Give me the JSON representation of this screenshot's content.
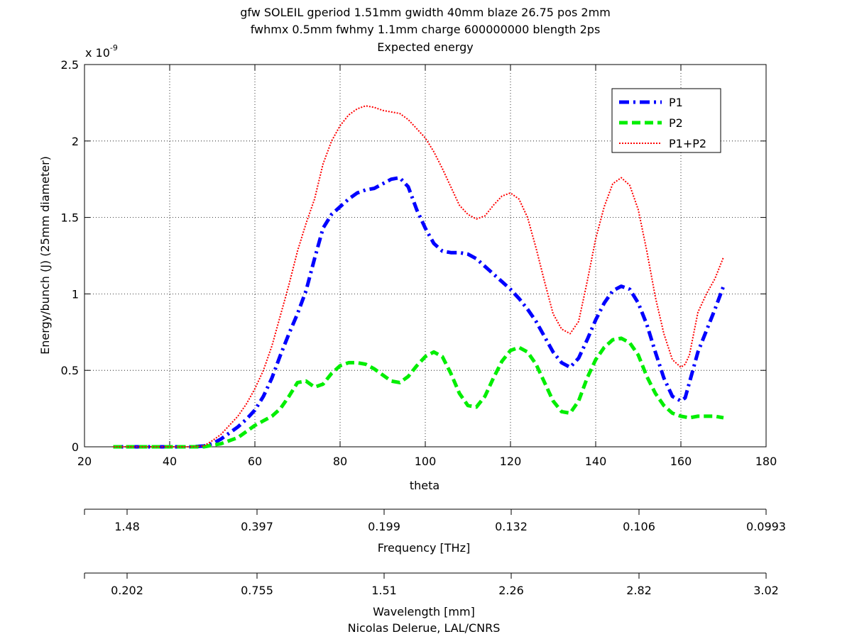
{
  "chart_data": {
    "type": "line",
    "title_lines": [
      "gfw SOLEIL gperiod 1.51mm gwidth 40mm blaze 26.75 pos 2mm",
      "fwhmx 0.5mm fwhmy 1.1mm charge 600000000 blength 2ps",
      "Expected energy"
    ],
    "xlabel": "theta",
    "ylabel": "Energy/bunch (J) (25mm diameter)",
    "y_exponent_label": "x 10",
    "y_exponent_power": "-9",
    "xlim": [
      20,
      180
    ],
    "ylim": [
      0,
      2.5
    ],
    "x_ticks": [
      20,
      40,
      60,
      80,
      100,
      120,
      140,
      160,
      180
    ],
    "y_ticks": [
      0,
      0.5,
      1,
      1.5,
      2,
      2.5
    ],
    "x_tick_labels": [
      "20",
      "40",
      "60",
      "80",
      "100",
      "120",
      "140",
      "160",
      "180"
    ],
    "y_tick_labels": [
      "0",
      "0.5",
      "1",
      "1.5",
      "2",
      "2.5"
    ],
    "grid": true,
    "legend_position": "top-right",
    "series": [
      {
        "name": "P1",
        "color": "#0000ff",
        "style": "dashdot",
        "points": [
          [
            26.75,
            0
          ],
          [
            30,
            0
          ],
          [
            35,
            0
          ],
          [
            40,
            0
          ],
          [
            45,
            0
          ],
          [
            48,
            0.005
          ],
          [
            50,
            0.02
          ],
          [
            52,
            0.05
          ],
          [
            54,
            0.09
          ],
          [
            56,
            0.13
          ],
          [
            58,
            0.18
          ],
          [
            60,
            0.24
          ],
          [
            62,
            0.33
          ],
          [
            64,
            0.45
          ],
          [
            66,
            0.6
          ],
          [
            68,
            0.74
          ],
          [
            70,
            0.87
          ],
          [
            72,
            1.02
          ],
          [
            74,
            1.23
          ],
          [
            76,
            1.43
          ],
          [
            78,
            1.52
          ],
          [
            80,
            1.57
          ],
          [
            82,
            1.62
          ],
          [
            84,
            1.66
          ],
          [
            86,
            1.68
          ],
          [
            88,
            1.69
          ],
          [
            90,
            1.72
          ],
          [
            92,
            1.75
          ],
          [
            94,
            1.76
          ],
          [
            96,
            1.7
          ],
          [
            98,
            1.55
          ],
          [
            100,
            1.43
          ],
          [
            102,
            1.33
          ],
          [
            104,
            1.28
          ],
          [
            106,
            1.27
          ],
          [
            108,
            1.27
          ],
          [
            110,
            1.26
          ],
          [
            112,
            1.23
          ],
          [
            114,
            1.18
          ],
          [
            116,
            1.13
          ],
          [
            118,
            1.08
          ],
          [
            120,
            1.03
          ],
          [
            122,
            0.97
          ],
          [
            124,
            0.9
          ],
          [
            126,
            0.82
          ],
          [
            128,
            0.72
          ],
          [
            130,
            0.62
          ],
          [
            132,
            0.55
          ],
          [
            134,
            0.52
          ],
          [
            136,
            0.58
          ],
          [
            138,
            0.7
          ],
          [
            140,
            0.83
          ],
          [
            142,
            0.94
          ],
          [
            144,
            1.02
          ],
          [
            146,
            1.05
          ],
          [
            148,
            1.03
          ],
          [
            150,
            0.94
          ],
          [
            152,
            0.8
          ],
          [
            154,
            0.62
          ],
          [
            156,
            0.45
          ],
          [
            158,
            0.33
          ],
          [
            160,
            0.3
          ],
          [
            161,
            0.32
          ],
          [
            162,
            0.42
          ],
          [
            164,
            0.62
          ],
          [
            166,
            0.76
          ],
          [
            168,
            0.9
          ],
          [
            170,
            1.05
          ]
        ]
      },
      {
        "name": "P2",
        "color": "#00ee00",
        "style": "dashed",
        "points": [
          [
            26.75,
            0
          ],
          [
            30,
            0
          ],
          [
            35,
            0
          ],
          [
            40,
            0
          ],
          [
            45,
            0
          ],
          [
            48,
            0
          ],
          [
            50,
            0.01
          ],
          [
            52,
            0.02
          ],
          [
            54,
            0.04
          ],
          [
            56,
            0.06
          ],
          [
            58,
            0.1
          ],
          [
            60,
            0.14
          ],
          [
            62,
            0.17
          ],
          [
            64,
            0.2
          ],
          [
            66,
            0.25
          ],
          [
            68,
            0.33
          ],
          [
            70,
            0.42
          ],
          [
            72,
            0.43
          ],
          [
            74,
            0.39
          ],
          [
            76,
            0.41
          ],
          [
            78,
            0.48
          ],
          [
            80,
            0.53
          ],
          [
            82,
            0.55
          ],
          [
            84,
            0.55
          ],
          [
            86,
            0.54
          ],
          [
            88,
            0.51
          ],
          [
            90,
            0.47
          ],
          [
            92,
            0.43
          ],
          [
            94,
            0.42
          ],
          [
            96,
            0.46
          ],
          [
            98,
            0.53
          ],
          [
            100,
            0.59
          ],
          [
            102,
            0.62
          ],
          [
            104,
            0.59
          ],
          [
            106,
            0.48
          ],
          [
            108,
            0.35
          ],
          [
            110,
            0.27
          ],
          [
            112,
            0.26
          ],
          [
            114,
            0.33
          ],
          [
            116,
            0.45
          ],
          [
            118,
            0.56
          ],
          [
            120,
            0.63
          ],
          [
            122,
            0.65
          ],
          [
            124,
            0.62
          ],
          [
            126,
            0.54
          ],
          [
            128,
            0.42
          ],
          [
            130,
            0.3
          ],
          [
            132,
            0.23
          ],
          [
            134,
            0.22
          ],
          [
            136,
            0.3
          ],
          [
            138,
            0.45
          ],
          [
            140,
            0.57
          ],
          [
            142,
            0.65
          ],
          [
            144,
            0.7
          ],
          [
            146,
            0.71
          ],
          [
            148,
            0.68
          ],
          [
            150,
            0.6
          ],
          [
            152,
            0.46
          ],
          [
            154,
            0.35
          ],
          [
            156,
            0.27
          ],
          [
            158,
            0.22
          ],
          [
            160,
            0.2
          ],
          [
            162,
            0.19
          ],
          [
            164,
            0.2
          ],
          [
            166,
            0.2
          ],
          [
            168,
            0.2
          ],
          [
            170,
            0.19
          ]
        ]
      },
      {
        "name": "P1+P2",
        "color": "#ff0000",
        "style": "dotted",
        "points": [
          [
            26.75,
            0
          ],
          [
            30,
            0
          ],
          [
            35,
            0
          ],
          [
            40,
            0
          ],
          [
            45,
            0
          ],
          [
            48,
            0.005
          ],
          [
            50,
            0.04
          ],
          [
            52,
            0.08
          ],
          [
            54,
            0.14
          ],
          [
            56,
            0.2
          ],
          [
            58,
            0.28
          ],
          [
            60,
            0.38
          ],
          [
            62,
            0.5
          ],
          [
            64,
            0.66
          ],
          [
            66,
            0.86
          ],
          [
            68,
            1.06
          ],
          [
            70,
            1.28
          ],
          [
            72,
            1.46
          ],
          [
            74,
            1.62
          ],
          [
            76,
            1.85
          ],
          [
            78,
            2.0
          ],
          [
            80,
            2.1
          ],
          [
            82,
            2.17
          ],
          [
            84,
            2.21
          ],
          [
            86,
            2.23
          ],
          [
            88,
            2.22
          ],
          [
            90,
            2.2
          ],
          [
            92,
            2.19
          ],
          [
            94,
            2.18
          ],
          [
            96,
            2.14
          ],
          [
            98,
            2.08
          ],
          [
            100,
            2.02
          ],
          [
            102,
            1.93
          ],
          [
            104,
            1.82
          ],
          [
            106,
            1.7
          ],
          [
            108,
            1.58
          ],
          [
            110,
            1.52
          ],
          [
            112,
            1.49
          ],
          [
            114,
            1.51
          ],
          [
            116,
            1.58
          ],
          [
            118,
            1.64
          ],
          [
            120,
            1.66
          ],
          [
            122,
            1.62
          ],
          [
            124,
            1.5
          ],
          [
            126,
            1.3
          ],
          [
            128,
            1.08
          ],
          [
            130,
            0.87
          ],
          [
            132,
            0.77
          ],
          [
            134,
            0.74
          ],
          [
            136,
            0.82
          ],
          [
            138,
            1.08
          ],
          [
            140,
            1.36
          ],
          [
            142,
            1.57
          ],
          [
            144,
            1.72
          ],
          [
            146,
            1.76
          ],
          [
            148,
            1.71
          ],
          [
            150,
            1.55
          ],
          [
            152,
            1.28
          ],
          [
            154,
            0.98
          ],
          [
            156,
            0.74
          ],
          [
            158,
            0.57
          ],
          [
            160,
            0.52
          ],
          [
            161,
            0.54
          ],
          [
            162,
            0.6
          ],
          [
            164,
            0.88
          ],
          [
            166,
            1.0
          ],
          [
            168,
            1.1
          ],
          [
            170,
            1.24
          ]
        ]
      }
    ],
    "secondary_axes": [
      {
        "label": "Frequency [THz]",
        "tick_labels": [
          "1.48",
          "0.397",
          "0.199",
          "0.132",
          "0.106",
          "0.0993"
        ]
      },
      {
        "label": "Wavelength [mm]",
        "tick_labels": [
          "0.202",
          "0.755",
          "1.51",
          "2.26",
          "2.82",
          "3.02"
        ]
      }
    ],
    "footer": "Nicolas Delerue, LAL/CNRS"
  }
}
